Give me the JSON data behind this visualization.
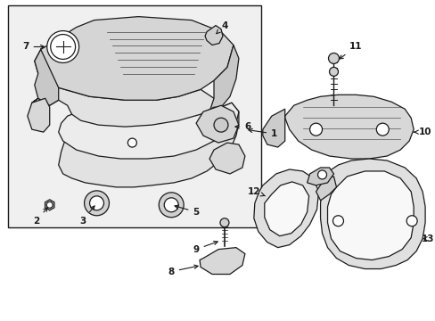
{
  "bg_color": "#ffffff",
  "line_color": "#1a1a1a",
  "fill_cover": "#e8e8e8",
  "fill_base": "#eeeeee",
  "fill_white": "#ffffff",
  "box_fill": "#f0f0f0",
  "figsize": [
    4.89,
    3.6
  ],
  "dpi": 100
}
